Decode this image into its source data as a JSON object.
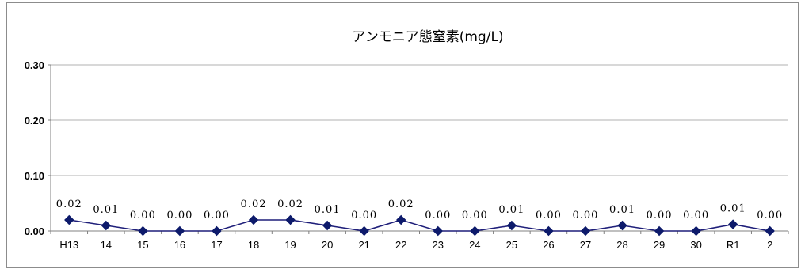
{
  "chart_data": {
    "type": "line",
    "title": "アンモニア態窒素(mg/L)",
    "xlabel": "",
    "ylabel": "",
    "categories": [
      "H13",
      "14",
      "15",
      "16",
      "17",
      "18",
      "19",
      "20",
      "21",
      "22",
      "23",
      "24",
      "25",
      "26",
      "27",
      "28",
      "29",
      "30",
      "R1",
      "2"
    ],
    "series": [
      {
        "values": [
          0.02,
          0.01,
          0.0,
          0.0,
          0.0,
          0.02,
          0.02,
          0.01,
          0.0,
          0.02,
          0.0,
          0.0,
          0.01,
          0.0,
          0.0,
          0.01,
          0.0,
          0.0,
          0.012,
          0.0
        ],
        "labels": [
          "0.02",
          "0.01",
          "0.00",
          "0.00",
          "0.00",
          "0.02",
          "0.02",
          "0.01",
          "0.00",
          "0.02",
          "0.00",
          "0.00",
          "0.01",
          "0.00",
          "0.00",
          "0.01",
          "0.00",
          "0.00",
          "0.01",
          "0.00"
        ]
      }
    ],
    "ylim": [
      0,
      0.3
    ],
    "yticks": [
      "0.00",
      "0.10",
      "0.20",
      "0.30"
    ],
    "grid": true,
    "legend": "none",
    "colors": {
      "line": "#1f1f7a",
      "marker": "#0d1a6b",
      "grid": "#b0b0b0",
      "axis": "#808080"
    }
  }
}
